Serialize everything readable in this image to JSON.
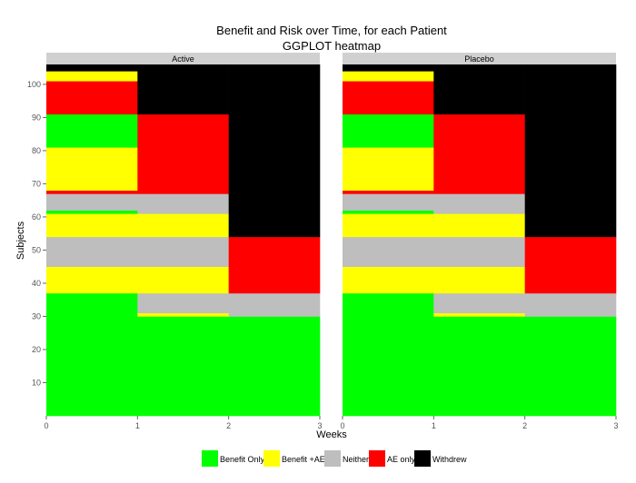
{
  "chart_data": {
    "type": "heatmap",
    "title": "Benefit and Risk over Time, for each Patient",
    "subtitle": "GGPLOT heatmap",
    "xlabel": "Weeks",
    "ylabel": "Subjects",
    "xlim": [
      0,
      3
    ],
    "ylim": [
      0,
      106
    ],
    "x_ticks": [
      "0",
      "1",
      "2",
      "3"
    ],
    "y_ticks": [
      "10",
      "20",
      "30",
      "40",
      "50",
      "60",
      "70",
      "80",
      "90",
      "100"
    ],
    "grid": false,
    "legend_position": "bottom",
    "categories": [
      "Benefit Only",
      "Benefit +AE",
      "Neither",
      "AE only",
      "Withdrew"
    ],
    "colors": {
      "Benefit Only": "#00ff00",
      "Benefit +AE": "#ffff00",
      "Neither": "#bebebe",
      "AE only": "#ff0000",
      "Withdrew": "#000000",
      "strip": "#d0d0d0"
    },
    "facets": [
      {
        "name": "Active",
        "cells": [
          {
            "x0": 0,
            "x1": 1,
            "y0": 0,
            "y1": 37,
            "status": "Benefit Only"
          },
          {
            "x0": 0,
            "x1": 1,
            "y0": 37,
            "y1": 45,
            "status": "Benefit +AE"
          },
          {
            "x0": 0,
            "x1": 1,
            "y0": 45,
            "y1": 54,
            "status": "Neither"
          },
          {
            "x0": 0,
            "x1": 1,
            "y0": 54,
            "y1": 61,
            "status": "Benefit +AE"
          },
          {
            "x0": 0,
            "x1": 1,
            "y0": 61,
            "y1": 62,
            "status": "Benefit Only"
          },
          {
            "x0": 0,
            "x1": 1,
            "y0": 62,
            "y1": 67,
            "status": "Neither"
          },
          {
            "x0": 0,
            "x1": 1,
            "y0": 67,
            "y1": 68,
            "status": "AE only"
          },
          {
            "x0": 0,
            "x1": 1,
            "y0": 68,
            "y1": 81,
            "status": "Benefit +AE"
          },
          {
            "x0": 0,
            "x1": 1,
            "y0": 81,
            "y1": 91,
            "status": "Benefit Only"
          },
          {
            "x0": 0,
            "x1": 1,
            "y0": 91,
            "y1": 101,
            "status": "AE only"
          },
          {
            "x0": 0,
            "x1": 1,
            "y0": 101,
            "y1": 104,
            "status": "Benefit +AE"
          },
          {
            "x0": 0,
            "x1": 1,
            "y0": 104,
            "y1": 106,
            "status": "Withdrew"
          },
          {
            "x0": 1,
            "x1": 2,
            "y0": 0,
            "y1": 30,
            "status": "Benefit Only"
          },
          {
            "x0": 1,
            "x1": 2,
            "y0": 30,
            "y1": 31,
            "status": "Benefit +AE"
          },
          {
            "x0": 1,
            "x1": 2,
            "y0": 31,
            "y1": 37,
            "status": "Neither"
          },
          {
            "x0": 1,
            "x1": 2,
            "y0": 37,
            "y1": 45,
            "status": "Benefit +AE"
          },
          {
            "x0": 1,
            "x1": 2,
            "y0": 45,
            "y1": 54,
            "status": "Neither"
          },
          {
            "x0": 1,
            "x1": 2,
            "y0": 54,
            "y1": 61,
            "status": "Benefit +AE"
          },
          {
            "x0": 1,
            "x1": 2,
            "y0": 61,
            "y1": 67,
            "status": "Neither"
          },
          {
            "x0": 1,
            "x1": 2,
            "y0": 67,
            "y1": 91,
            "status": "AE only"
          },
          {
            "x0": 1,
            "x1": 2,
            "y0": 91,
            "y1": 106,
            "status": "Withdrew"
          },
          {
            "x0": 2,
            "x1": 3,
            "y0": 0,
            "y1": 30,
            "status": "Benefit Only"
          },
          {
            "x0": 2,
            "x1": 3,
            "y0": 30,
            "y1": 37,
            "status": "Neither"
          },
          {
            "x0": 2,
            "x1": 3,
            "y0": 37,
            "y1": 54,
            "status": "AE only"
          },
          {
            "x0": 2,
            "x1": 3,
            "y0": 54,
            "y1": 106,
            "status": "Withdrew"
          }
        ]
      },
      {
        "name": "Placebo",
        "cells": [
          {
            "x0": 0,
            "x1": 1,
            "y0": 0,
            "y1": 37,
            "status": "Benefit Only"
          },
          {
            "x0": 0,
            "x1": 1,
            "y0": 37,
            "y1": 45,
            "status": "Benefit +AE"
          },
          {
            "x0": 0,
            "x1": 1,
            "y0": 45,
            "y1": 54,
            "status": "Neither"
          },
          {
            "x0": 0,
            "x1": 1,
            "y0": 54,
            "y1": 61,
            "status": "Benefit +AE"
          },
          {
            "x0": 0,
            "x1": 1,
            "y0": 61,
            "y1": 62,
            "status": "Benefit Only"
          },
          {
            "x0": 0,
            "x1": 1,
            "y0": 62,
            "y1": 67,
            "status": "Neither"
          },
          {
            "x0": 0,
            "x1": 1,
            "y0": 67,
            "y1": 68,
            "status": "AE only"
          },
          {
            "x0": 0,
            "x1": 1,
            "y0": 68,
            "y1": 81,
            "status": "Benefit +AE"
          },
          {
            "x0": 0,
            "x1": 1,
            "y0": 81,
            "y1": 91,
            "status": "Benefit Only"
          },
          {
            "x0": 0,
            "x1": 1,
            "y0": 91,
            "y1": 101,
            "status": "AE only"
          },
          {
            "x0": 0,
            "x1": 1,
            "y0": 101,
            "y1": 104,
            "status": "Benefit +AE"
          },
          {
            "x0": 0,
            "x1": 1,
            "y0": 104,
            "y1": 106,
            "status": "Withdrew"
          },
          {
            "x0": 1,
            "x1": 2,
            "y0": 0,
            "y1": 30,
            "status": "Benefit Only"
          },
          {
            "x0": 1,
            "x1": 2,
            "y0": 30,
            "y1": 31,
            "status": "Benefit +AE"
          },
          {
            "x0": 1,
            "x1": 2,
            "y0": 31,
            "y1": 37,
            "status": "Neither"
          },
          {
            "x0": 1,
            "x1": 2,
            "y0": 37,
            "y1": 45,
            "status": "Benefit +AE"
          },
          {
            "x0": 1,
            "x1": 2,
            "y0": 45,
            "y1": 54,
            "status": "Neither"
          },
          {
            "x0": 1,
            "x1": 2,
            "y0": 54,
            "y1": 61,
            "status": "Benefit +AE"
          },
          {
            "x0": 1,
            "x1": 2,
            "y0": 61,
            "y1": 67,
            "status": "Neither"
          },
          {
            "x0": 1,
            "x1": 2,
            "y0": 67,
            "y1": 91,
            "status": "AE only"
          },
          {
            "x0": 1,
            "x1": 2,
            "y0": 91,
            "y1": 106,
            "status": "Withdrew"
          },
          {
            "x0": 2,
            "x1": 3,
            "y0": 0,
            "y1": 30,
            "status": "Benefit Only"
          },
          {
            "x0": 2,
            "x1": 3,
            "y0": 30,
            "y1": 37,
            "status": "Neither"
          },
          {
            "x0": 2,
            "x1": 3,
            "y0": 37,
            "y1": 54,
            "status": "AE only"
          },
          {
            "x0": 2,
            "x1": 3,
            "y0": 54,
            "y1": 106,
            "status": "Withdrew"
          }
        ]
      }
    ]
  }
}
